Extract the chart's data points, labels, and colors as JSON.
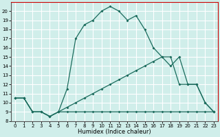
{
  "xlabel": "Humidex (Indice chaleur)",
  "xlim": [
    -0.5,
    23.5
  ],
  "ylim": [
    8,
    21
  ],
  "yticks": [
    8,
    9,
    10,
    11,
    12,
    13,
    14,
    15,
    16,
    17,
    18,
    19,
    20
  ],
  "xticks": [
    0,
    1,
    2,
    3,
    4,
    5,
    6,
    7,
    8,
    9,
    10,
    11,
    12,
    13,
    14,
    15,
    16,
    17,
    18,
    19,
    20,
    21,
    22,
    23
  ],
  "bg_color": "#d0eeea",
  "grid_color": "#ffffff",
  "line_color": "#1a6b5c",
  "top_spine_color": "#cc0000",
  "right_spine_color": "#cc0000",
  "line1_x": [
    0,
    1,
    2,
    3,
    4,
    5,
    6,
    7,
    8,
    9,
    10,
    11,
    12,
    13,
    14,
    15,
    16,
    17,
    18,
    19,
    20,
    21,
    22,
    23
  ],
  "line1_y": [
    10.5,
    10.5,
    9.0,
    9.0,
    8.5,
    9.0,
    11.5,
    17.0,
    18.5,
    19.0,
    20.0,
    20.5,
    20.0,
    19.0,
    19.5,
    18.0,
    16.0,
    15.0,
    14.0,
    15.0,
    12.0,
    12.0,
    10.0,
    9.0
  ],
  "line2_x": [
    0,
    1,
    2,
    3,
    4,
    5,
    6,
    7,
    8,
    9,
    10,
    11,
    12,
    13,
    14,
    15,
    16,
    17,
    18,
    19,
    20,
    21,
    22,
    23
  ],
  "line2_y": [
    10.5,
    10.5,
    9.0,
    9.0,
    8.5,
    9.0,
    9.5,
    10.0,
    10.5,
    11.0,
    11.5,
    12.0,
    12.5,
    13.0,
    13.5,
    14.0,
    14.5,
    15.0,
    15.0,
    12.0,
    12.0,
    12.0,
    10.0,
    9.0
  ],
  "line3_x": [
    0,
    1,
    2,
    3,
    4,
    5,
    6,
    7,
    8,
    9,
    10,
    11,
    12,
    13,
    14,
    15,
    16,
    17,
    18,
    19,
    20,
    21,
    22,
    23
  ],
  "line3_y": [
    10.5,
    10.5,
    9.0,
    9.0,
    8.5,
    9.0,
    9.0,
    9.0,
    9.0,
    9.0,
    9.0,
    9.0,
    9.0,
    9.0,
    9.0,
    9.0,
    9.0,
    9.0,
    9.0,
    9.0,
    9.0,
    9.0,
    9.0,
    9.0
  ],
  "marker": "D",
  "markersize": 2.0,
  "linewidth": 0.9,
  "tick_labelsize": 5,
  "xlabel_fontsize": 6
}
